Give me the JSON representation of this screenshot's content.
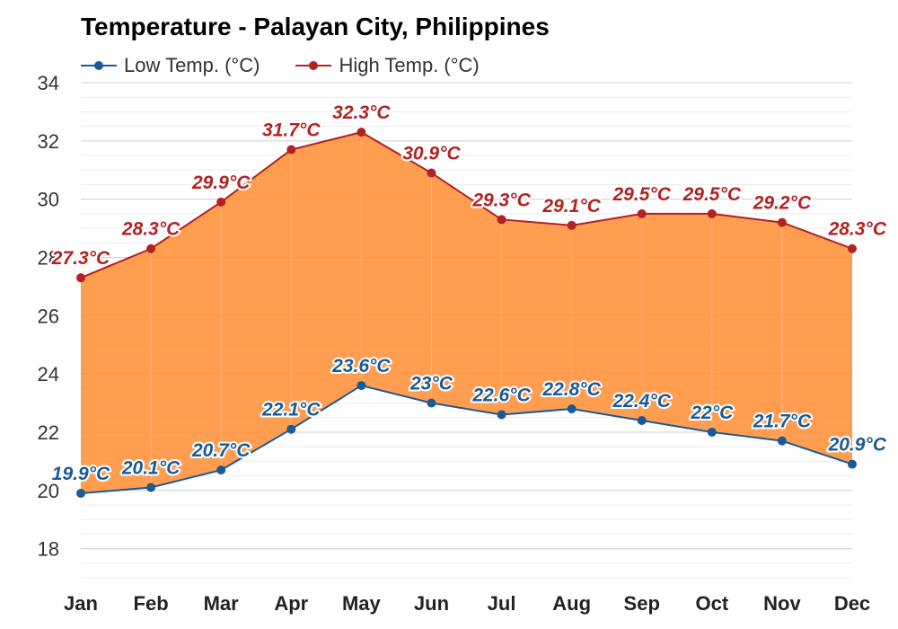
{
  "chart_data": {
    "type": "line",
    "title": "Temperature - Palayan City, Philippines",
    "categories": [
      "Jan",
      "Feb",
      "Mar",
      "Apr",
      "May",
      "Jun",
      "Jul",
      "Aug",
      "Sep",
      "Oct",
      "Nov",
      "Dec"
    ],
    "series": [
      {
        "name": "Low Temp. (°C)",
        "color": "#1a5a96",
        "values": [
          19.9,
          20.1,
          20.7,
          22.1,
          23.6,
          23,
          22.6,
          22.8,
          22.4,
          22,
          21.7,
          20.9
        ],
        "labels": [
          "19.9°C",
          "20.1°C",
          "20.7°C",
          "22.1°C",
          "23.6°C",
          "23°C",
          "22.6°C",
          "22.8°C",
          "22.4°C",
          "22°C",
          "21.7°C",
          "20.9°C"
        ]
      },
      {
        "name": "High Temp. (°C)",
        "color": "#b22222",
        "values": [
          27.3,
          28.3,
          29.9,
          31.7,
          32.3,
          30.9,
          29.3,
          29.1,
          29.5,
          29.5,
          29.2,
          28.3
        ],
        "labels": [
          "27.3°C",
          "28.3°C",
          "29.9°C",
          "31.7°C",
          "32.3°C",
          "30.9°C",
          "29.3°C",
          "29.1°C",
          "29.5°C",
          "29.5°C",
          "29.2°C",
          "28.3°C"
        ]
      }
    ],
    "ylim": [
      17,
      34
    ],
    "yticks": [
      "18",
      "20",
      "22",
      "24",
      "26",
      "28",
      "30",
      "32",
      "34"
    ],
    "grid": true,
    "legend": "top-left",
    "fill_color": "#ff8c33"
  }
}
